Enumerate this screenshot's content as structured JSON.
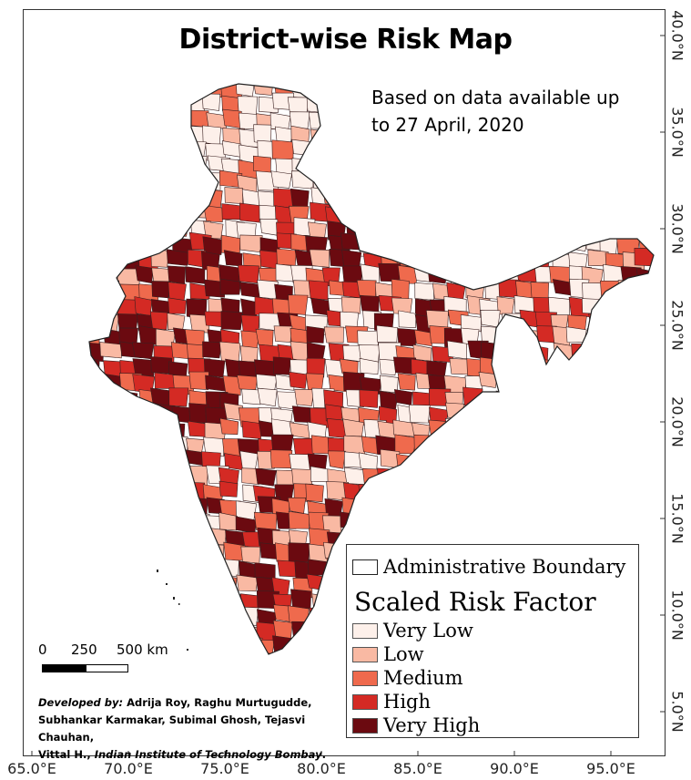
{
  "title": "District-wise Risk Map",
  "note_line1": "Based on data available up",
  "note_line2": "to 27 April, 2020",
  "x_ticks": [
    "65.0°E",
    "70.0°E",
    "75.0°E",
    "80.0°E",
    "85.0°E",
    "90.0°E",
    "95.0°E"
  ],
  "y_ticks": [
    "40.0°N",
    "35.0°N",
    "30.0°N",
    "25.0°N",
    "20.0°N",
    "15.0°N",
    "10.0°N",
    "5.0°N"
  ],
  "legend": {
    "boundary_label": "Administrative Boundary",
    "title": "Scaled Risk Factor",
    "classes": [
      {
        "label": "Very Low",
        "color": "#fdf0ea"
      },
      {
        "label": "Low",
        "color": "#f9b9a3"
      },
      {
        "label": "Medium",
        "color": "#ef6a4d"
      },
      {
        "label": "High",
        "color": "#d42a24"
      },
      {
        "label": "Very High",
        "color": "#6b0a10"
      }
    ]
  },
  "scalebar": {
    "l0": "0",
    "l1": "250",
    "l2": "500 km"
  },
  "credits": {
    "developed_by": "Developed by:",
    "names_1": " Adrija Roy, Raghu Murtugudde,",
    "names_2": "Subhankar Karmakar, Subimal Ghosh, Tejasvi Chauhan,",
    "names_3": "Vittal H., ",
    "institute": "Indian Institute of Technology Bombay",
    "end": "."
  }
}
